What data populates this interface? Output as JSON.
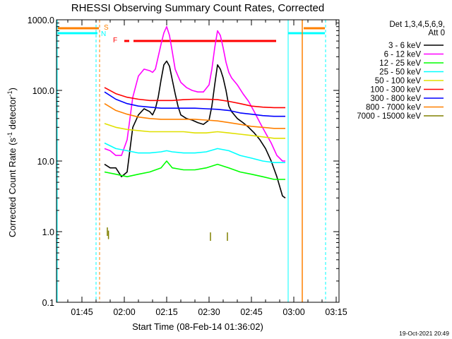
{
  "chart_data": {
    "type": "line",
    "title": "RHESSI Observing Summary Count Rates, Corrected",
    "xlabel": "Start Time (08-Feb-14 01:36:02)",
    "ylabel": "Corrected Count Rate (s⁻¹ detector⁻¹)",
    "ylabel_parts": [
      "Corrected Count Rate (s",
      "-1",
      " detector",
      "-1",
      ")"
    ],
    "yscale": "log",
    "ylim": [
      0.1,
      1000
    ],
    "xlim_minutes": [
      96,
      196
    ],
    "x_unit": "minutes after 00:00 UT",
    "ytick_labels": [
      "0.1",
      "1.0",
      "10.0",
      "100.0",
      "1000.0"
    ],
    "ytick_values": [
      0.1,
      1,
      10,
      100,
      1000
    ],
    "xtick_labels": [
      "01:45",
      "02:00",
      "02:15",
      "02:30",
      "02:45",
      "03:00",
      "03:15"
    ],
    "xtick_values": [
      105,
      120,
      135,
      150,
      165,
      180,
      195
    ],
    "legend_title": [
      "Det 1,3,4,5,6,9,",
      "Att 0"
    ],
    "legend_placement": "right",
    "series": [
      {
        "name": "3 - 6 keV",
        "color": "#000000",
        "x": [
          113,
          115,
          117,
          119,
          121,
          123,
          125,
          127,
          129,
          130,
          131,
          132,
          133,
          134,
          135,
          136,
          137,
          138,
          139,
          140,
          142,
          144,
          146,
          148,
          150,
          151,
          152,
          153,
          154,
          155,
          156,
          157,
          158,
          160,
          162,
          164,
          166,
          168,
          170,
          172,
          174,
          176,
          177
        ],
        "y": [
          9,
          8,
          8,
          6,
          7,
          30,
          45,
          55,
          50,
          45,
          55,
          80,
          140,
          230,
          260,
          220,
          140,
          90,
          60,
          45,
          40,
          38,
          35,
          33,
          38,
          60,
          120,
          230,
          200,
          150,
          100,
          60,
          50,
          40,
          35,
          30,
          25,
          20,
          15,
          10,
          6,
          3.2,
          3
        ]
      },
      {
        "name": "6 - 12 keV",
        "color": "#ff00ff",
        "x": [
          113,
          115,
          117,
          119,
          121,
          123,
          125,
          127,
          129,
          130,
          131,
          132,
          133,
          134,
          135,
          136,
          137,
          138,
          139,
          140,
          142,
          144,
          146,
          148,
          150,
          151,
          152,
          153,
          154,
          155,
          156,
          157,
          158,
          160,
          162,
          164,
          166,
          168,
          170,
          172,
          174,
          176,
          177
        ],
        "y": [
          15,
          14,
          12,
          12,
          20,
          80,
          160,
          200,
          190,
          180,
          200,
          300,
          450,
          650,
          800,
          600,
          350,
          200,
          160,
          130,
          110,
          100,
          95,
          95,
          120,
          200,
          400,
          700,
          600,
          400,
          250,
          180,
          150,
          120,
          90,
          70,
          50,
          35,
          25,
          18,
          12,
          10,
          10
        ]
      },
      {
        "name": "12 - 25 keV",
        "color": "#00ff00",
        "x": [
          113,
          117,
          121,
          125,
          129,
          133,
          135,
          137,
          141,
          145,
          149,
          153,
          157,
          161,
          165,
          169,
          173,
          177
        ],
        "y": [
          7,
          6.5,
          6,
          6.5,
          7,
          8,
          10,
          8,
          7.5,
          7.5,
          8,
          9,
          8,
          7,
          6.5,
          6,
          5.5,
          5.5
        ]
      },
      {
        "name": "25 - 50 keV",
        "color": "#00ffff",
        "x": [
          113,
          117,
          121,
          125,
          129,
          133,
          135,
          137,
          141,
          145,
          149,
          153,
          157,
          161,
          165,
          169,
          173,
          177
        ],
        "y": [
          18,
          15,
          14,
          13,
          13,
          13.5,
          14,
          13.5,
          13,
          13,
          13.5,
          15,
          14,
          12,
          11,
          10,
          9.5,
          9.5
        ]
      },
      {
        "name": "50 - 100 keV",
        "color": "#e0e000",
        "x": [
          113,
          117,
          121,
          125,
          129,
          133,
          135,
          137,
          141,
          145,
          149,
          153,
          157,
          161,
          165,
          169,
          173,
          177
        ],
        "y": [
          34,
          30,
          28,
          27,
          26,
          26,
          26,
          26,
          26,
          25,
          25,
          26,
          25,
          24,
          23,
          22,
          21,
          21
        ]
      },
      {
        "name": "100 - 300 keV",
        "color": "#ff0000",
        "x": [
          113,
          117,
          121,
          125,
          129,
          133,
          137,
          141,
          145,
          149,
          153,
          157,
          161,
          165,
          169,
          173,
          177
        ],
        "y": [
          110,
          90,
          80,
          75,
          72,
          72,
          72,
          74,
          75,
          75,
          74,
          70,
          65,
          60,
          58,
          57,
          57
        ]
      },
      {
        "name": "300 - 800 keV",
        "color": "#0000ff",
        "x": [
          113,
          117,
          121,
          125,
          129,
          133,
          137,
          141,
          145,
          149,
          153,
          157,
          161,
          165,
          169,
          173,
          177
        ],
        "y": [
          95,
          75,
          65,
          60,
          58,
          56,
          56,
          56,
          56,
          55,
          54,
          52,
          48,
          46,
          44,
          43,
          43
        ]
      },
      {
        "name": "800 - 7000 keV",
        "color": "#ff8000",
        "x": [
          113,
          117,
          121,
          125,
          129,
          133,
          137,
          141,
          145,
          149,
          153,
          157,
          161,
          165,
          169,
          173,
          177
        ],
        "y": [
          65,
          52,
          46,
          42,
          40,
          39,
          39,
          39,
          39,
          38,
          37,
          35,
          33,
          31,
          30,
          29,
          29
        ]
      },
      {
        "name": "7000 - 15000 keV",
        "color": "#808000",
        "x": [
          114,
          114.4,
          150.5,
          156.5
        ],
        "y": [
          1.0,
          0.9,
          0.85,
          0.85
        ]
      }
    ],
    "flag_labels": [
      "S",
      "N",
      "F"
    ],
    "timestamp": "19-Oct-2021 20:49"
  }
}
